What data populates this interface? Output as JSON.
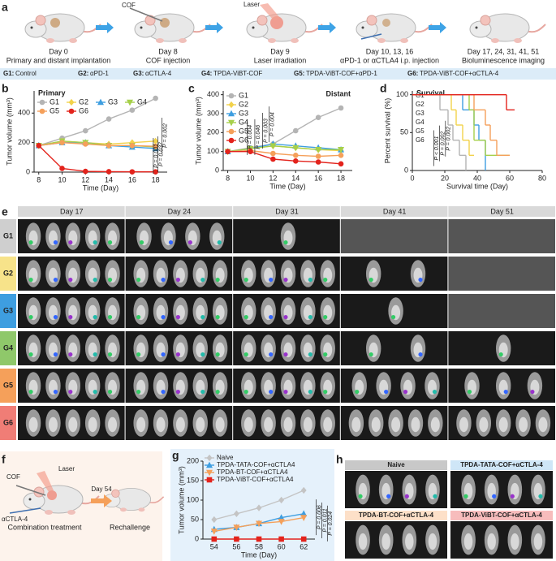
{
  "panel_labels": [
    "a",
    "b",
    "c",
    "d",
    "e",
    "f",
    "g",
    "h"
  ],
  "timeline": {
    "tags": [
      "COF",
      "Laser"
    ],
    "steps": [
      {
        "day": "Day 0",
        "text": "Primary and distant implantation"
      },
      {
        "day": "Day 8",
        "text": "COF injection"
      },
      {
        "day": "Day 9",
        "text": "Laser irradiation"
      },
      {
        "day": "Day 10, 13, 16",
        "text": "αPD-1 or αCTLA4 i.p. injection"
      },
      {
        "day": "Day 17, 24, 31, 41, 51",
        "text": "Bioluminescence imaging"
      }
    ]
  },
  "groups": [
    {
      "id": "G1:",
      "label": "Control"
    },
    {
      "id": "G2:",
      "label": "αPD-1"
    },
    {
      "id": "G3:",
      "label": "αCTLA-4"
    },
    {
      "id": "G4:",
      "label": "TPDA-ViBT-COF"
    },
    {
      "id": "G5:",
      "label": "TPDA-ViBT-COF+αPD-1"
    },
    {
      "id": "G6:",
      "label": "TPDA-ViBT-COF+αCTLA-4"
    }
  ],
  "chart_data": [
    {
      "type": "line",
      "title": "Primary",
      "x_label": "Time (Day)",
      "y_label": "Tumor volume (mm³)",
      "x": [
        8,
        10,
        12,
        14,
        16,
        18
      ],
      "xlim": [
        7.6,
        19
      ],
      "xticks": [
        8,
        10,
        12,
        14,
        16,
        18
      ],
      "ylim": [
        0,
        550
      ],
      "yticks": [
        0,
        200,
        400
      ],
      "series": [
        {
          "name": "G1",
          "color": "#b4b4b4",
          "marker": "circle",
          "values": [
            180,
            230,
            280,
            360,
            420,
            500
          ]
        },
        {
          "name": "G2",
          "color": "#f2d24b",
          "marker": "diamond",
          "values": [
            180,
            210,
            200,
            190,
            200,
            210
          ]
        },
        {
          "name": "G3",
          "color": "#3e9ee0",
          "marker": "triangle-up",
          "values": [
            180,
            200,
            200,
            180,
            170,
            160
          ]
        },
        {
          "name": "G4",
          "color": "#a6d04a",
          "marker": "triangle-down",
          "values": [
            180,
            210,
            200,
            180,
            180,
            170
          ]
        },
        {
          "name": "G5",
          "color": "#f5a05a",
          "marker": "circle",
          "values": [
            180,
            200,
            190,
            180,
            180,
            175
          ]
        },
        {
          "name": "G6",
          "color": "#e3231c",
          "marker": "circle",
          "values": [
            180,
            25,
            5,
            3,
            2,
            2
          ]
        }
      ],
      "annotations": [
        "P = 0.002",
        "P = 0.037",
        "P = 0.001"
      ]
    },
    {
      "type": "line",
      "title": "Distant",
      "x_label": "Time (Day)",
      "y_label": "Tumor volume (mm³)",
      "x": [
        8,
        10,
        12,
        14,
        16,
        18
      ],
      "xlim": [
        7.6,
        19
      ],
      "xticks": [
        8,
        10,
        12,
        14,
        16,
        18
      ],
      "ylim": [
        0,
        420
      ],
      "yticks": [
        0,
        100,
        200,
        300,
        400
      ],
      "series": [
        {
          "name": "G1",
          "color": "#b4b4b4",
          "marker": "circle",
          "values": [
            100,
            120,
            140,
            210,
            280,
            330
          ]
        },
        {
          "name": "G2",
          "color": "#f2d24b",
          "marker": "diamond",
          "values": [
            100,
            115,
            130,
            120,
            110,
            105
          ]
        },
        {
          "name": "G3",
          "color": "#3e9ee0",
          "marker": "triangle-up",
          "values": [
            100,
            115,
            140,
            130,
            120,
            110
          ]
        },
        {
          "name": "G4",
          "color": "#a6d04a",
          "marker": "triangle-down",
          "values": [
            100,
            115,
            130,
            120,
            110,
            110
          ]
        },
        {
          "name": "G5",
          "color": "#f5a05a",
          "marker": "circle",
          "values": [
            100,
            105,
            90,
            80,
            75,
            80
          ]
        },
        {
          "name": "G6",
          "color": "#e3231c",
          "marker": "circle",
          "values": [
            100,
            100,
            60,
            50,
            45,
            35
          ]
        }
      ],
      "annotations": [
        "P = 0.004",
        "P = 0.003",
        "P = 0.046",
        "P = 0.004"
      ]
    },
    {
      "type": "step",
      "title": "Survival",
      "x_label": "Survival time (Day)",
      "y_label": "Percent survival (%)",
      "xlim": [
        0,
        80
      ],
      "xticks": [
        0,
        20,
        40,
        60,
        80
      ],
      "ylim": [
        0,
        105
      ],
      "yticks": [
        0,
        50,
        100
      ],
      "series": [
        {
          "name": "G1",
          "color": "#b4b4b4",
          "x": [
            0,
            17,
            22,
            25,
            29,
            33
          ],
          "values": [
            100,
            80,
            60,
            40,
            20,
            0
          ]
        },
        {
          "name": "G2",
          "color": "#f2d24b",
          "x": [
            0,
            24,
            27,
            31,
            35,
            38
          ],
          "values": [
            100,
            80,
            60,
            40,
            20,
            20
          ]
        },
        {
          "name": "G3",
          "color": "#3e9ee0",
          "x": [
            0,
            31,
            38,
            41,
            45
          ],
          "values": [
            100,
            80,
            60,
            40,
            0
          ]
        },
        {
          "name": "G4",
          "color": "#a6d04a",
          "x": [
            0,
            35,
            38,
            45,
            60
          ],
          "values": [
            100,
            80,
            40,
            20,
            20
          ]
        },
        {
          "name": "G5",
          "color": "#f5a05a",
          "x": [
            0,
            38,
            45,
            48,
            52,
            60
          ],
          "values": [
            100,
            80,
            60,
            40,
            20,
            20
          ]
        },
        {
          "name": "G6",
          "color": "#e3231c",
          "x": [
            0,
            58,
            63
          ],
          "values": [
            100,
            80,
            80
          ]
        }
      ],
      "annotations": [
        "P = 0.002",
        "P = 0.002",
        "P < 0.001"
      ]
    },
    {
      "type": "line",
      "x_label": "Time (Day)",
      "y_label": "Tumor volume (mm³)",
      "x": [
        54,
        56,
        58,
        60,
        62
      ],
      "xlim": [
        53,
        63
      ],
      "xticks": [
        54,
        56,
        58,
        60,
        62
      ],
      "ylim": [
        0,
        200
      ],
      "yticks": [
        0,
        50,
        100,
        150,
        200
      ],
      "series": [
        {
          "name": "Naive",
          "color": "#c4c4c4",
          "marker": "diamond",
          "values": [
            50,
            65,
            80,
            100,
            125
          ]
        },
        {
          "name": "TPDA-TATA-COF+αCTLA4",
          "color": "#3e9ee0",
          "marker": "triangle-up",
          "values": [
            25,
            30,
            40,
            55,
            65
          ]
        },
        {
          "name": "TPDA-BT-COF+αCTLA4",
          "color": "#f5a05a",
          "marker": "triangle-down",
          "values": [
            20,
            30,
            40,
            45,
            55
          ]
        },
        {
          "name": "TPDA-ViBT-COF+αCTLA4",
          "color": "#e3231c",
          "marker": "square",
          "values": [
            0,
            0,
            0,
            0,
            0
          ]
        }
      ],
      "annotations": [
        "P = 0.006",
        "P = 0.011",
        "P = 0.024"
      ]
    }
  ],
  "imaging": {
    "days": [
      "Day 17",
      "Day 24",
      "Day 31",
      "Day 41",
      "Day 51"
    ],
    "rows": [
      "G1",
      "G2",
      "G3",
      "G4",
      "G5",
      "G6"
    ]
  },
  "rechallenge": {
    "labels": [
      "COF",
      "Laser",
      "αCTLA-4"
    ],
    "arrow": "Day 54",
    "captions": [
      "Combination treatment",
      "Rechallenge"
    ]
  },
  "rechallenge_imaging": {
    "groups": [
      "Naive",
      "TPDA-TATA-COF+αCTLA-4",
      "TPDA-BT-COF+αCTLA-4",
      "TPDA-ViBT-COF+αCTLA-4"
    ]
  }
}
